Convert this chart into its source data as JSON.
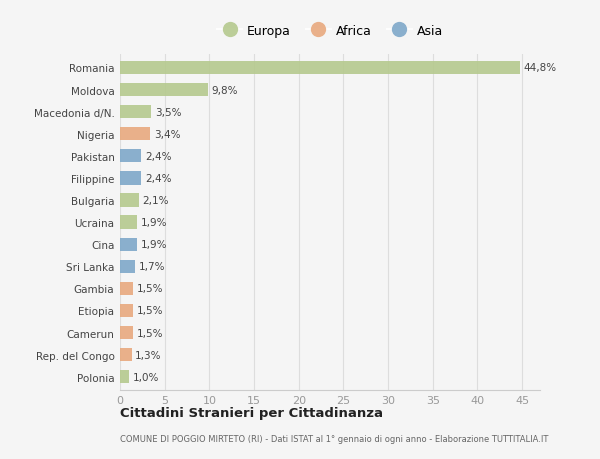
{
  "countries": [
    "Romania",
    "Moldova",
    "Macedonia d/N.",
    "Nigeria",
    "Pakistan",
    "Filippine",
    "Bulgaria",
    "Ucraina",
    "Cina",
    "Sri Lanka",
    "Gambia",
    "Etiopia",
    "Camerun",
    "Rep. del Congo",
    "Polonia"
  ],
  "values": [
    44.8,
    9.8,
    3.5,
    3.4,
    2.4,
    2.4,
    2.1,
    1.9,
    1.9,
    1.7,
    1.5,
    1.5,
    1.5,
    1.3,
    1.0
  ],
  "labels": [
    "44,8%",
    "9,8%",
    "3,5%",
    "3,4%",
    "2,4%",
    "2,4%",
    "2,1%",
    "1,9%",
    "1,9%",
    "1,7%",
    "1,5%",
    "1,5%",
    "1,5%",
    "1,3%",
    "1,0%"
  ],
  "continents": [
    "Europa",
    "Europa",
    "Europa",
    "Africa",
    "Asia",
    "Asia",
    "Europa",
    "Europa",
    "Asia",
    "Asia",
    "Africa",
    "Africa",
    "Africa",
    "Africa",
    "Europa"
  ],
  "colors": {
    "Europa": "#b5c98e",
    "Africa": "#e8a97e",
    "Asia": "#7ea8c9"
  },
  "legend_labels": [
    "Europa",
    "Africa",
    "Asia"
  ],
  "title": "Cittadini Stranieri per Cittadinanza",
  "subtitle": "COMUNE DI POGGIO MIRTETO (RI) - Dati ISTAT al 1° gennaio di ogni anno - Elaborazione TUTTITALIA.IT",
  "xlim": [
    0,
    47
  ],
  "xticks": [
    0,
    5,
    10,
    15,
    20,
    25,
    30,
    35,
    40,
    45
  ],
  "background_color": "#f5f5f5",
  "bar_height": 0.6
}
